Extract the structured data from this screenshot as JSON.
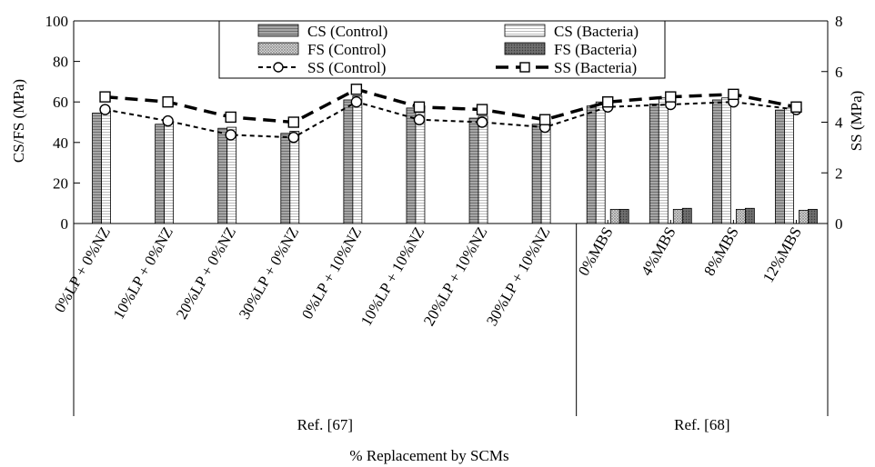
{
  "chart_data": {
    "type": "bar",
    "ylabel": "CS/FS (MPa)",
    "y2label": "SS (MPa)",
    "xlabel": "% Replacement by SCMs",
    "ylim": [
      0,
      100
    ],
    "yticks": [
      0,
      20,
      40,
      60,
      80,
      100
    ],
    "y2lim": [
      0,
      8
    ],
    "y2ticks": [
      0,
      2,
      4,
      6,
      8
    ],
    "categories": [
      "0%LP + 0%NZ",
      "10%LP + 0%NZ",
      "20%LP + 0%NZ",
      "30%LP + 0%NZ",
      "0%LP + 10%NZ",
      "10%LP + 10%NZ",
      "20%LP + 10%NZ",
      "30%LP + 10%NZ",
      "0%MBS",
      "4%MBS",
      "8%MBS",
      "12%MBS"
    ],
    "groups": [
      {
        "label": "Ref. [67]",
        "start": 0,
        "end": 7
      },
      {
        "label": "Ref. [68]",
        "start": 8,
        "end": 11
      }
    ],
    "legend_position": "top-center",
    "series": [
      {
        "name": "CS (Control)",
        "kind": "bar",
        "axis": "left",
        "color": "#9a9a9a",
        "values": [
          54.5,
          49,
          47,
          44.5,
          61,
          57,
          52,
          49,
          58,
          59,
          61,
          56
        ]
      },
      {
        "name": "CS (Bacteria)",
        "kind": "bar",
        "axis": "left",
        "color": "#f2f2f2",
        "values": [
          55.5,
          50,
          47.5,
          45.5,
          63,
          58,
          53,
          50,
          60,
          62,
          62,
          57
        ]
      },
      {
        "name": "FS (Control)",
        "kind": "bar",
        "axis": "left",
        "color": "#bdbdbd",
        "values": [
          null,
          null,
          null,
          null,
          null,
          null,
          null,
          null,
          7,
          7,
          7,
          6.5
        ]
      },
      {
        "name": "FS (Bacteria)",
        "kind": "bar",
        "axis": "left",
        "color": "#7a7a7a",
        "values": [
          null,
          null,
          null,
          null,
          null,
          null,
          null,
          null,
          7,
          7.5,
          7.5,
          7
        ]
      },
      {
        "name": "SS (Control)",
        "kind": "line",
        "axis": "right",
        "marker": "circle",
        "values": [
          4.5,
          4.05,
          3.5,
          3.4,
          4.8,
          4.1,
          4.0,
          3.8,
          4.6,
          4.7,
          4.8,
          4.5
        ]
      },
      {
        "name": "SS (Bacteria)",
        "kind": "line",
        "axis": "right",
        "marker": "square",
        "values": [
          5.0,
          4.8,
          4.2,
          4.0,
          5.3,
          4.6,
          4.5,
          4.1,
          4.8,
          5.0,
          5.1,
          4.6
        ]
      }
    ]
  }
}
